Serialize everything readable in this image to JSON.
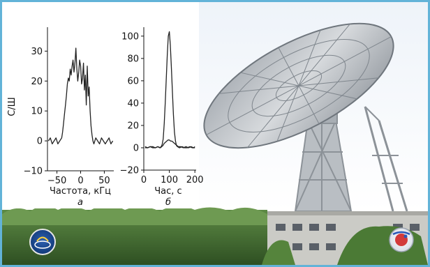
{
  "colors": {
    "frame_border": "#62b3d8",
    "sky": "#f4f7fb",
    "vegetation": "#3f6a2e",
    "building": "#c9c9c4",
    "dish": "#b4b9bf",
    "curve": "#222222"
  },
  "icons": [
    "observatory-emblem-icon",
    "space-agency-emblem-icon"
  ],
  "chart_data": [
    {
      "type": "line",
      "panel_label": "а",
      "xlabel": "Частота, кГц",
      "ylabel": "С/Ш",
      "xlim": [
        -70,
        70
      ],
      "ylim": [
        -10,
        38
      ],
      "xticks": [
        -50,
        0,
        50
      ],
      "xtick_labels": [
        "−50",
        "0",
        "50"
      ],
      "yticks": [
        -10,
        0,
        10,
        20,
        30
      ],
      "ytick_labels": [
        "−10",
        "0",
        "10",
        "20",
        "30"
      ],
      "grid": false,
      "series": [
        {
          "x": [
            -68,
            -64,
            -60,
            -56,
            -52,
            -48,
            -44,
            -40,
            -38,
            -36,
            -34,
            -32,
            -30,
            -28,
            -26,
            -24,
            -22,
            -20,
            -18,
            -16,
            -14,
            -12,
            -10,
            -8,
            -6,
            -4,
            -2,
            0,
            2,
            4,
            6,
            8,
            10,
            12,
            14,
            16,
            18,
            20,
            22,
            24,
            26,
            28,
            32,
            36,
            40,
            44,
            48,
            52,
            56,
            60,
            64,
            68
          ],
          "y": [
            0,
            1,
            -1,
            0,
            1,
            -1,
            0,
            1,
            3,
            6,
            9,
            12,
            15,
            19,
            21,
            20,
            24,
            22,
            25,
            27,
            23,
            26,
            31,
            24,
            20,
            23,
            27,
            25,
            19,
            21,
            26,
            17,
            22,
            12,
            25,
            15,
            18,
            10,
            5,
            2,
            0,
            -1,
            1,
            0,
            -1,
            1,
            0,
            -1,
            0,
            1,
            -1,
            0
          ]
        }
      ]
    },
    {
      "type": "line",
      "panel_label": "б",
      "xlabel": "Час, с",
      "ylabel": "",
      "xlim": [
        0,
        205
      ],
      "ylim": [
        -20,
        108
      ],
      "xticks": [
        0,
        100,
        200
      ],
      "xtick_labels": [
        "0",
        "100",
        "200"
      ],
      "yticks": [
        -20,
        0,
        20,
        40,
        60,
        80,
        100
      ],
      "ytick_labels": [
        "−20",
        "0",
        "20",
        "40",
        "60",
        "80",
        "100"
      ],
      "grid": false,
      "series": [
        {
          "x": [
            5,
            15,
            25,
            35,
            45,
            55,
            62,
            68,
            72,
            76,
            80,
            84,
            88,
            92,
            96,
            100,
            104,
            108,
            112,
            116,
            120,
            124,
            128,
            132,
            140,
            150,
            160,
            170,
            180,
            190,
            200
          ],
          "y": [
            0,
            0,
            1,
            0,
            0,
            1,
            0,
            1,
            3,
            8,
            22,
            40,
            62,
            84,
            100,
            104,
            92,
            72,
            50,
            30,
            14,
            6,
            2,
            1,
            0,
            1,
            0,
            0,
            1,
            0,
            0
          ]
        },
        {
          "x": [
            5,
            15,
            25,
            35,
            45,
            55,
            65,
            70,
            75,
            80,
            85,
            90,
            95,
            100,
            105,
            110,
            115,
            120,
            125,
            130,
            135,
            145,
            155,
            165,
            175,
            185,
            195,
            200
          ],
          "y": [
            1,
            0,
            1,
            1,
            0,
            1,
            0,
            1,
            2,
            4,
            5,
            6,
            7,
            7,
            6,
            6,
            5,
            4,
            3,
            2,
            1,
            1,
            0,
            1,
            0,
            1,
            0,
            1
          ]
        }
      ]
    }
  ]
}
